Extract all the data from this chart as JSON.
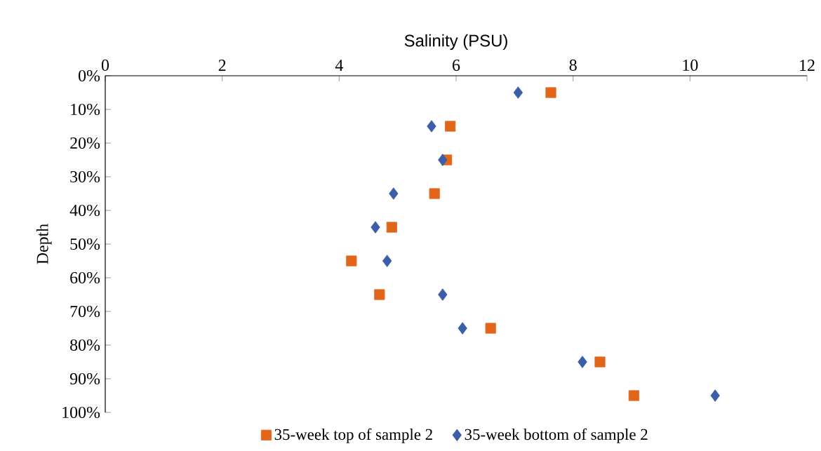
{
  "chart_data": {
    "type": "scatter",
    "xlabel": "Salinity (PSU)",
    "ylabel": "Depth",
    "xlim": [
      0,
      12
    ],
    "xticks": [
      0,
      2,
      4,
      6,
      8,
      10,
      12
    ],
    "ylim": [
      100,
      0
    ],
    "yticks": [
      {
        "value": 0,
        "label": "0%"
      },
      {
        "value": 10,
        "label": "10%"
      },
      {
        "value": 20,
        "label": "20%"
      },
      {
        "value": 30,
        "label": "30%"
      },
      {
        "value": 40,
        "label": "40%"
      },
      {
        "value": 50,
        "label": "50%"
      },
      {
        "value": 60,
        "label": "60%"
      },
      {
        "value": 70,
        "label": "70%"
      },
      {
        "value": 80,
        "label": "80%"
      },
      {
        "value": 90,
        "label": "90%"
      },
      {
        "value": 100,
        "label": "100%"
      }
    ],
    "grid": false,
    "legend": "bottom",
    "series": [
      {
        "name": "35-week top of sample 2",
        "color": "#e2661a",
        "marker": "square",
        "x": [
          7.62,
          5.9,
          5.84,
          5.63,
          4.9,
          4.21,
          4.69,
          6.59,
          8.46,
          9.04
        ],
        "values": [
          5,
          15,
          25,
          35,
          45,
          55,
          65,
          75,
          85,
          95
        ]
      },
      {
        "name": "35-week bottom of sample 2",
        "color": "#3a5fa8",
        "marker": "diamond",
        "x": [
          7.06,
          5.58,
          5.77,
          4.93,
          4.62,
          4.82,
          5.77,
          6.11,
          8.16,
          10.43
        ],
        "values": [
          5,
          15,
          25,
          35,
          45,
          55,
          65,
          75,
          85,
          95
        ]
      }
    ]
  }
}
